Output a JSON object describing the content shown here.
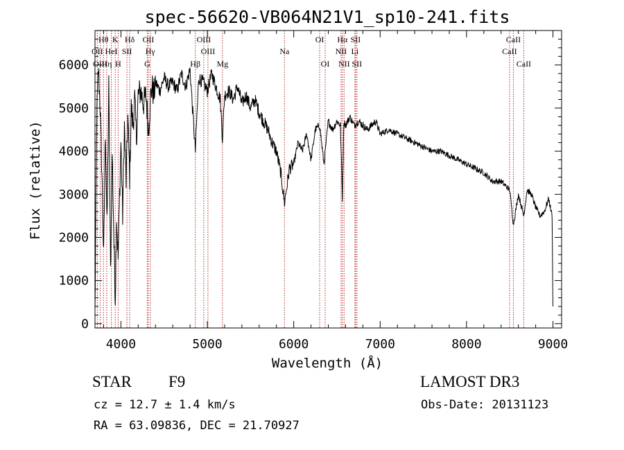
{
  "chart_data": {
    "type": "line",
    "title": "spec-56620-VB064N21V1_sp10-241.fits",
    "xlabel": "Wavelength (Å)",
    "ylabel": "Flux (relative)",
    "xlim": [
      3700,
      9100
    ],
    "ylim": [
      -100,
      6800
    ],
    "xticks": [
      4000,
      5000,
      6000,
      7000,
      8000,
      9000
    ],
    "yticks": [
      0,
      1000,
      2000,
      3000,
      4000,
      5000,
      6000
    ],
    "series": [
      {
        "name": "flux",
        "x": [
          3700,
          3710,
          3720,
          3740,
          3760,
          3780,
          3800,
          3820,
          3840,
          3860,
          3880,
          3900,
          3920,
          3935,
          3950,
          3968,
          3985,
          4000,
          4020,
          4040,
          4060,
          4080,
          4101,
          4120,
          4140,
          4160,
          4180,
          4200,
          4230,
          4260,
          4290,
          4320,
          4340,
          4360,
          4380,
          4400,
          4450,
          4500,
          4550,
          4600,
          4650,
          4700,
          4750,
          4800,
          4861,
          4900,
          4950,
          5000,
          5050,
          5100,
          5150,
          5175,
          5200,
          5250,
          5300,
          5350,
          5400,
          5450,
          5500,
          5550,
          5600,
          5650,
          5700,
          5750,
          5800,
          5850,
          5893,
          5950,
          6000,
          6050,
          6100,
          6150,
          6200,
          6250,
          6300,
          6350,
          6400,
          6450,
          6500,
          6540,
          6563,
          6580,
          6600,
          6650,
          6700,
          6750,
          6800,
          6850,
          6900,
          6950,
          7000,
          7100,
          7200,
          7300,
          7400,
          7500,
          7600,
          7700,
          7800,
          7900,
          8000,
          8100,
          8200,
          8300,
          8400,
          8500,
          8542,
          8600,
          8662,
          8700,
          8750,
          8800,
          8850,
          8900,
          8950,
          8990,
          9000
        ],
        "y": [
          200,
          2500,
          4800,
          5900,
          5000,
          3500,
          1500,
          4500,
          2200,
          5500,
          1200,
          4000,
          1800,
          600,
          2500,
          1500,
          3000,
          4200,
          2500,
          4600,
          3300,
          4800,
          3400,
          5000,
          4600,
          5200,
          4300,
          5300,
          5400,
          5100,
          5300,
          4500,
          5200,
          5500,
          5300,
          5600,
          5400,
          5700,
          5500,
          5600,
          5400,
          5800,
          5500,
          5900,
          4000,
          5700,
          5600,
          5400,
          5800,
          5500,
          5200,
          4300,
          5300,
          5400,
          5200,
          5500,
          5100,
          5300,
          5000,
          5200,
          4900,
          4700,
          4500,
          4200,
          4000,
          3500,
          2800,
          3600,
          3700,
          4200,
          4000,
          4400,
          3800,
          4500,
          4600,
          3700,
          4700,
          4500,
          4700,
          4600,
          2900,
          4700,
          4600,
          4800,
          4600,
          4700,
          4600,
          4500,
          4600,
          4700,
          4400,
          4500,
          4400,
          4300,
          4200,
          4100,
          4000,
          4000,
          3900,
          3800,
          3700,
          3600,
          3500,
          3300,
          3300,
          3100,
          2300,
          3000,
          2500,
          3100,
          3000,
          2700,
          2500,
          2600,
          2900,
          2500,
          400
        ]
      }
    ],
    "lines": [
      {
        "label": "Hθ",
        "wavelength": 3798,
        "row": 0
      },
      {
        "label": "OII",
        "wavelength": 3727,
        "row": 1
      },
      {
        "label": "OIII",
        "wavelength": 3760,
        "row": 2
      },
      {
        "label": "Hη",
        "wavelength": 3836,
        "row": 2
      },
      {
        "label": "HeI",
        "wavelength": 3889,
        "row": 1
      },
      {
        "label": "K",
        "wavelength": 3934,
        "row": 0
      },
      {
        "label": "SII",
        "wavelength": 4070,
        "row": 1
      },
      {
        "label": "H",
        "wavelength": 3968,
        "row": 2
      },
      {
        "label": "Hδ",
        "wavelength": 4102,
        "row": 0
      },
      {
        "label": "OII",
        "wavelength": 4318,
        "row": 0
      },
      {
        "label": "Hγ",
        "wavelength": 4340,
        "row": 1
      },
      {
        "label": "G",
        "wavelength": 4305,
        "row": 2
      },
      {
        "label": "Hβ",
        "wavelength": 4861,
        "row": 2
      },
      {
        "label": "OIII",
        "wavelength": 4959,
        "row": 0
      },
      {
        "label": "OIII",
        "wavelength": 5007,
        "row": 1
      },
      {
        "label": "Mg",
        "wavelength": 5175,
        "row": 2
      },
      {
        "label": "Na",
        "wavelength": 5893,
        "row": 1
      },
      {
        "label": "OI",
        "wavelength": 6300,
        "row": 0
      },
      {
        "label": "OI",
        "wavelength": 6364,
        "row": 2
      },
      {
        "label": "Hα",
        "wavelength": 6563,
        "row": 0
      },
      {
        "label": "NII",
        "wavelength": 6548,
        "row": 1
      },
      {
        "label": "NII",
        "wavelength": 6583,
        "row": 2
      },
      {
        "label": "SII",
        "wavelength": 6716,
        "row": 0
      },
      {
        "label": "Li",
        "wavelength": 6708,
        "row": 1
      },
      {
        "label": "SII",
        "wavelength": 6731,
        "row": 2
      },
      {
        "label": "CaII",
        "wavelength": 8542,
        "row": 0
      },
      {
        "label": "CaII",
        "wavelength": 8498,
        "row": 1
      },
      {
        "label": "CaII",
        "wavelength": 8662,
        "row": 2
      }
    ]
  },
  "info": {
    "object_type": "STAR",
    "subclass": "F9",
    "survey": "LAMOST DR3",
    "redshift": "cz = 12.7 ± 1.4 km/s",
    "obs_date": "Obs-Date: 20131123",
    "coords": "RA =  63.09836, DEC =  21.70927"
  }
}
